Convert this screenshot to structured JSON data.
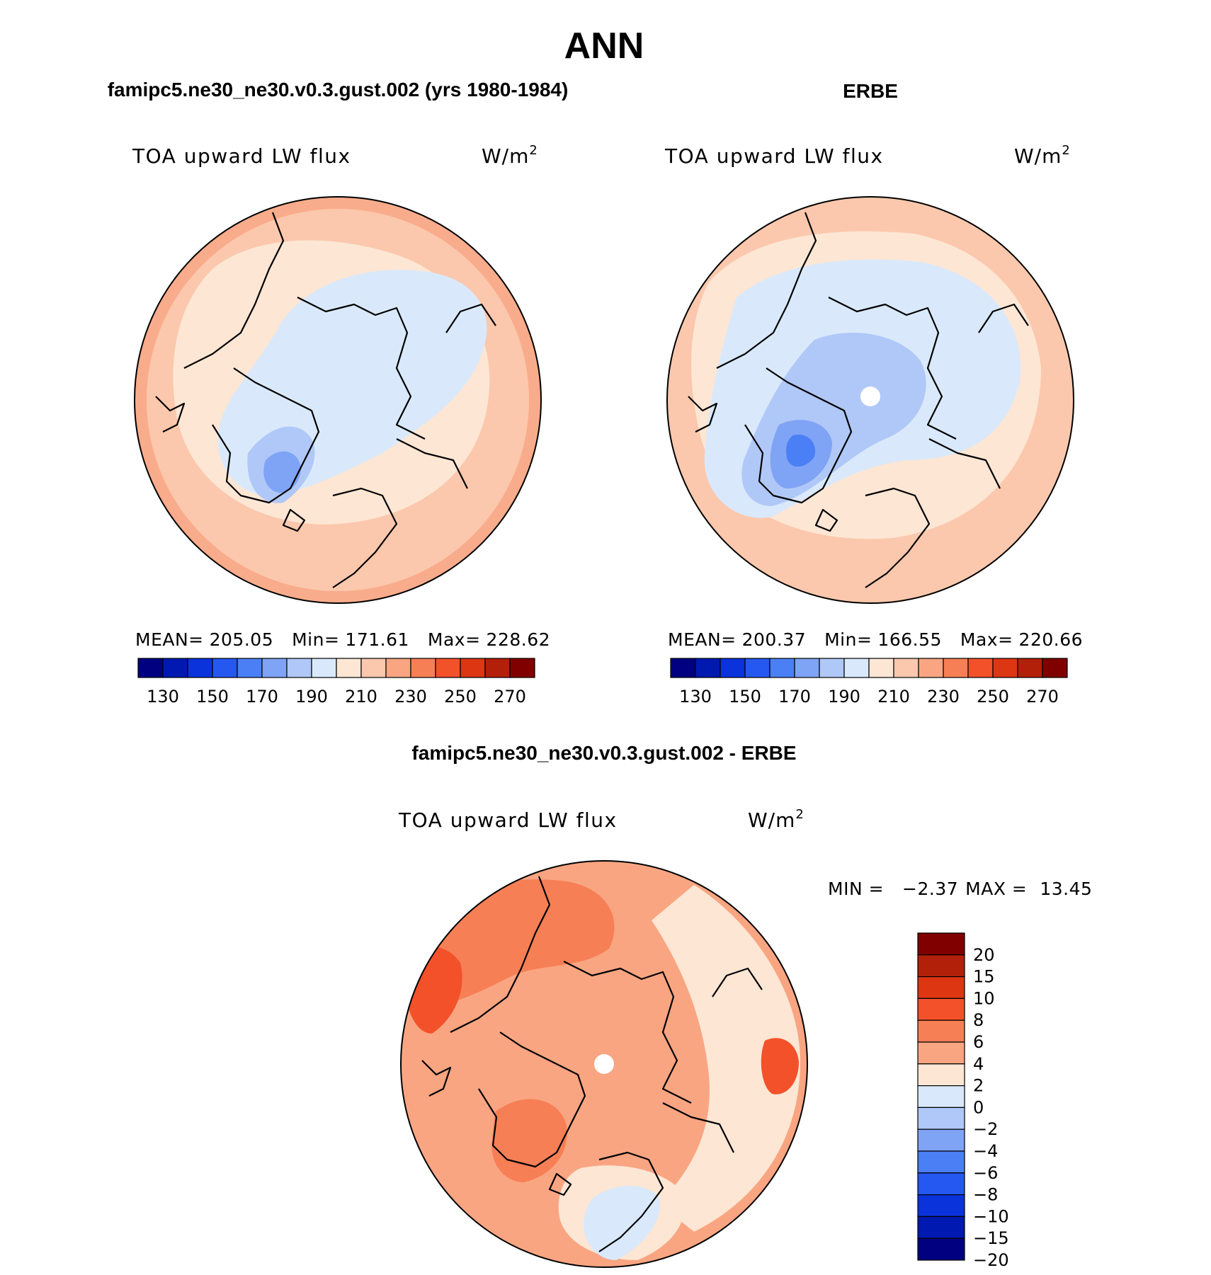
{
  "chart_data": {
    "type": "contour-map",
    "figure_title": "ANN",
    "panels": [
      {
        "id": "model",
        "title": "famipc5.ne30_ne30.v0.3.gust.002 (yrs 1980-1984)",
        "variable": "TOA upward LW flux",
        "units": "W/m",
        "units_superscript": "2",
        "projection": "north polar stereographic",
        "stats": {
          "mean_label": "MEAN=",
          "mean": "205.05",
          "min_label": "Min=",
          "min": "171.61",
          "max_label": "Max=",
          "max": "228.62"
        },
        "colorbar": {
          "orientation": "horizontal",
          "levels": [
            130,
            140,
            150,
            160,
            170,
            180,
            190,
            200,
            210,
            220,
            230,
            240,
            250,
            260,
            270
          ],
          "tick_labels": [
            "130",
            "150",
            "170",
            "190",
            "210",
            "230",
            "250",
            "270"
          ]
        }
      },
      {
        "id": "obs",
        "title": "ERBE",
        "variable": "TOA upward LW flux",
        "units": "W/m",
        "units_superscript": "2",
        "projection": "north polar stereographic",
        "stats": {
          "mean_label": "MEAN=",
          "mean": "200.37",
          "min_label": "Min=",
          "min": "166.55",
          "max_label": "Max=",
          "max": "220.66"
        },
        "colorbar": {
          "orientation": "horizontal",
          "levels": [
            130,
            140,
            150,
            160,
            170,
            180,
            190,
            200,
            210,
            220,
            230,
            240,
            250,
            260,
            270
          ],
          "tick_labels": [
            "130",
            "150",
            "170",
            "190",
            "210",
            "230",
            "250",
            "270"
          ]
        }
      },
      {
        "id": "diff",
        "title": "famipc5.ne30_ne30.v0.3.gust.002 - ERBE",
        "variable": "TOA upward LW flux",
        "units": "W/m",
        "units_superscript": "2",
        "projection": "north polar stereographic",
        "stats": {
          "min_label": "MIN =",
          "min": "−2.37",
          "max_label": "MAX =",
          "max": "13.45"
        },
        "colorbar": {
          "orientation": "vertical",
          "levels": [
            20,
            15,
            10,
            8,
            6,
            4,
            2,
            0,
            -2,
            -4,
            -6,
            -8,
            -10,
            -15,
            -20
          ],
          "tick_labels": [
            "20",
            "15",
            "10",
            "8",
            "6",
            "4",
            "2",
            "0",
            "−2",
            "−4",
            "−6",
            "−8",
            "−10",
            "−15",
            "−20"
          ]
        }
      }
    ],
    "colors": {
      "abs_scale": [
        "#000080",
        "#0019b0",
        "#0a33dc",
        "#2458f0",
        "#4a7ff5",
        "#7fa3f5",
        "#b0c8f8",
        "#d9e9fb",
        "#fde6d4",
        "#fbc8ad",
        "#f9a582",
        "#f77f55",
        "#f2512a",
        "#dd3612",
        "#b3200a",
        "#800000"
      ],
      "diff_scale": [
        "#800000",
        "#b3200a",
        "#dd3612",
        "#f2512a",
        "#f77f55",
        "#f9a582",
        "#fde6d4",
        "#d9e9fb",
        "#b0c8f8",
        "#7fa3f5",
        "#4a7ff5",
        "#2458f0",
        "#0a33dc",
        "#0019b0",
        "#000080"
      ]
    }
  }
}
